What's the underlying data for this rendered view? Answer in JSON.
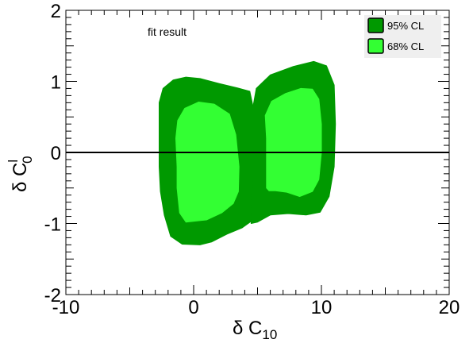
{
  "chart_data": {
    "type": "area",
    "title": "",
    "annotation": "fit result",
    "xlabel": {
      "prefix": "δ C",
      "sub": "10"
    },
    "ylabel": {
      "prefix": "δ C",
      "sup": "l",
      "sub": "0"
    },
    "xlim": [
      -10,
      20
    ],
    "ylim": [
      -2,
      2
    ],
    "x_ticks": [
      -10,
      0,
      10,
      20
    ],
    "y_ticks": [
      -2,
      -1,
      0,
      1,
      2
    ],
    "x_tick_labels": [
      "-10",
      "0",
      "10",
      "20"
    ],
    "y_tick_labels": [
      "-2",
      "-1",
      "0",
      "1",
      "2"
    ],
    "reference_line": {
      "y": 0,
      "color": "#000000"
    },
    "legend": {
      "placement": "top-right",
      "items": [
        {
          "label": "95% CL",
          "color": "#009900"
        },
        {
          "label": "68% CL",
          "color": "#33ff33"
        }
      ]
    },
    "regions": [
      {
        "name": "95% CL",
        "color": "#009900",
        "polygons": [
          [
            [
              -2.7,
              -0.2
            ],
            [
              -2.7,
              0.7
            ],
            [
              -2.4,
              0.9
            ],
            [
              -1.6,
              1.02
            ],
            [
              -0.6,
              1.06
            ],
            [
              0.5,
              1.04
            ],
            [
              2.0,
              0.97
            ],
            [
              3.4,
              0.91
            ],
            [
              4.4,
              0.86
            ],
            [
              4.7,
              0.6
            ],
            [
              4.8,
              0.0
            ],
            [
              4.7,
              -0.7
            ],
            [
              4.5,
              -0.97
            ],
            [
              3.8,
              -1.06
            ],
            [
              2.6,
              -1.15
            ],
            [
              1.4,
              -1.26
            ],
            [
              0.5,
              -1.3
            ],
            [
              -0.9,
              -1.29
            ],
            [
              -1.8,
              -1.18
            ],
            [
              -2.3,
              -0.88
            ],
            [
              -2.6,
              -0.55
            ]
          ],
          [
            [
              4.5,
              -1.0
            ],
            [
              4.6,
              -0.3
            ],
            [
              4.6,
              0.6
            ],
            [
              4.9,
              0.9
            ],
            [
              6.0,
              1.09
            ],
            [
              7.8,
              1.21
            ],
            [
              9.4,
              1.28
            ],
            [
              10.4,
              1.22
            ],
            [
              11.0,
              0.95
            ],
            [
              11.1,
              0.4
            ],
            [
              11.0,
              -0.2
            ],
            [
              10.6,
              -0.62
            ],
            [
              9.9,
              -0.84
            ],
            [
              8.8,
              -0.88
            ],
            [
              7.4,
              -0.86
            ],
            [
              6.0,
              -0.88
            ],
            [
              5.0,
              -0.98
            ]
          ]
        ]
      },
      {
        "name": "68% CL",
        "color": "#33ff33",
        "polygons": [
          [
            [
              -1.3,
              -0.2
            ],
            [
              -1.4,
              0.2
            ],
            [
              -1.25,
              0.45
            ],
            [
              -0.7,
              0.62
            ],
            [
              0.4,
              0.71
            ],
            [
              1.6,
              0.68
            ],
            [
              2.8,
              0.54
            ],
            [
              3.3,
              0.25
            ],
            [
              3.55,
              -0.2
            ],
            [
              3.5,
              -0.55
            ],
            [
              3.1,
              -0.72
            ],
            [
              2.2,
              -0.85
            ],
            [
              1.0,
              -0.95
            ],
            [
              -0.6,
              -0.98
            ],
            [
              -1.1,
              -0.85
            ],
            [
              -1.3,
              -0.5
            ]
          ],
          [
            [
              5.7,
              -0.5
            ],
            [
              5.7,
              0.2
            ],
            [
              5.6,
              0.52
            ],
            [
              6.1,
              0.72
            ],
            [
              7.2,
              0.83
            ],
            [
              8.4,
              0.9
            ],
            [
              9.3,
              0.89
            ],
            [
              9.8,
              0.75
            ],
            [
              10.0,
              0.4
            ],
            [
              10.0,
              0.0
            ],
            [
              9.8,
              -0.38
            ],
            [
              9.3,
              -0.55
            ],
            [
              8.3,
              -0.62
            ],
            [
              7.3,
              -0.56
            ],
            [
              6.4,
              -0.54
            ],
            [
              5.9,
              -0.54
            ]
          ]
        ]
      }
    ],
    "grid": false
  }
}
